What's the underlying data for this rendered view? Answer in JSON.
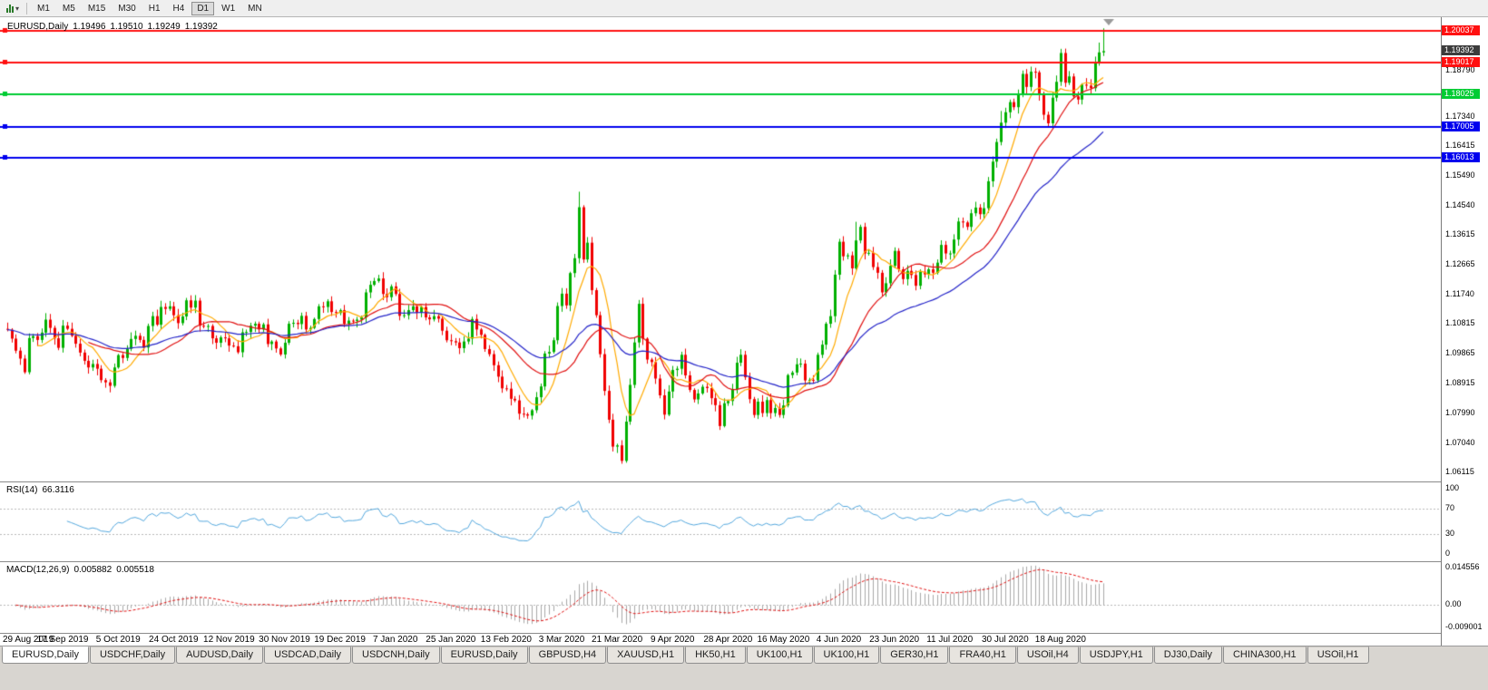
{
  "toolbar": {
    "timeframes": [
      "M1",
      "M5",
      "M15",
      "M30",
      "H1",
      "H4",
      "D1",
      "W1",
      "MN"
    ],
    "active_timeframe": "D1",
    "icons": {
      "charts_menu": "bar-chart-icon",
      "dropdown_caret": "▾"
    }
  },
  "chart": {
    "title": {
      "symbol_period": "EURUSD,Daily",
      "open": "1.19496",
      "high": "1.19510",
      "low": "1.19249",
      "close": "1.19392"
    },
    "dates": [
      "29 Aug 2019",
      "17 Sep 2019",
      "5 Oct 2019",
      "24 Oct 2019",
      "12 Nov 2019",
      "30 Nov 2019",
      "19 Dec 2019",
      "7 Jan 2020",
      "25 Jan 2020",
      "13 Feb 2020",
      "3 Mar 2020",
      "21 Mar 2020",
      "9 Apr 2020",
      "28 Apr 2020",
      "16 May 2020",
      "4 Jun 2020",
      "23 Jun 2020",
      "11 Jul 2020",
      "30 Jul 2020",
      "18 Aug 2020"
    ]
  },
  "chart_data": {
    "type": "candlestick",
    "symbol": "EURUSD",
    "timeframe": "Daily",
    "y_range": {
      "top": 1.2046,
      "bottom": 1.058
    },
    "y_ticks": [
      "1.18790",
      "1.17340",
      "1.16415",
      "1.15490",
      "1.14540",
      "1.13615",
      "1.12665",
      "1.11740",
      "1.10815",
      "1.09865",
      "1.08915",
      "1.07990",
      "1.07040",
      "1.06115"
    ],
    "current_price": {
      "value": 1.19392,
      "label": "1.19392",
      "bg": "#3c3c3c"
    },
    "hlines": [
      {
        "price": 1.20037,
        "label": "1.20037",
        "color": "#ff1010"
      },
      {
        "price": 1.19017,
        "label": "1.19017",
        "color": "#ff1010"
      },
      {
        "price": 1.18025,
        "label": "1.18025",
        "color": "#00cc33"
      },
      {
        "price": 1.17005,
        "label": "1.17005",
        "color": "#0000ee"
      },
      {
        "price": 1.16013,
        "label": "1.16013",
        "color": "#0000ee"
      }
    ],
    "first_open": 1.1062,
    "closes": [
      1.1059,
      1.1031,
      1.0993,
      1.0968,
      1.0925,
      1.1033,
      1.1039,
      1.1027,
      1.105,
      1.1091,
      1.1065,
      1.1032,
      1.1002,
      1.1072,
      1.1062,
      1.104,
      1.1015,
      1.0987,
      1.0961,
      1.094,
      1.0951,
      1.0936,
      1.09,
      1.0893,
      1.0882,
      1.094,
      1.0979,
      1.097,
      1.0999,
      1.103,
      1.104,
      1.1027,
      1.1003,
      1.1071,
      1.1102,
      1.1075,
      1.1131,
      1.1125,
      1.1133,
      1.1105,
      1.108,
      1.1101,
      1.1152,
      1.1129,
      1.1151,
      1.1072,
      1.1069,
      1.1071,
      1.1032,
      1.1018,
      1.1035,
      1.1032,
      1.1009,
      1.1007,
      1.0988,
      1.1051,
      1.1052,
      1.1072,
      1.1078,
      1.106,
      1.1076,
      1.1014,
      1.1022,
      1.1,
      1.0981,
      1.1018,
      1.1078,
      1.1081,
      1.1077,
      1.1103,
      1.106,
      1.1065,
      1.1093,
      1.1133,
      1.1131,
      1.1149,
      1.1115,
      1.1112,
      1.1121,
      1.1078,
      1.1088,
      1.1087,
      1.1091,
      1.1098,
      1.1177,
      1.1201,
      1.1213,
      1.1221,
      1.1172,
      1.1162,
      1.1196,
      1.1172,
      1.1103,
      1.1105,
      1.1121,
      1.1133,
      1.1113,
      1.1131,
      1.1098,
      1.1092,
      1.1102,
      1.1094,
      1.1056,
      1.1026,
      1.1023,
      1.1019,
      1.1001,
      1.1022,
      1.1031,
      1.1093,
      1.106,
      1.1043,
      1.0998,
      1.0982,
      1.0947,
      1.0911,
      1.0874,
      1.0873,
      1.0841,
      1.0836,
      1.0794,
      1.0792,
      1.0788,
      1.0805,
      1.0846,
      1.088,
      1.0984,
      1.0989,
      1.1026,
      1.1134,
      1.1173,
      1.1136,
      1.1238,
      1.1285,
      1.1446,
      1.1281,
      1.1334,
      1.1184,
      1.1105,
      1.0982,
      1.0866,
      1.0775,
      1.069,
      1.0694,
      1.0645,
      1.0769,
      1.0885,
      1.1019,
      1.1141,
      1.1031,
      1.0965,
      1.0957,
      1.0905,
      1.0852,
      1.0791,
      1.0864,
      1.0932,
      1.0936,
      1.098,
      1.0915,
      1.0869,
      1.0839,
      1.0858,
      1.0879,
      1.0875,
      1.0843,
      1.0821,
      1.0755,
      1.0827,
      1.0834,
      1.0872,
      1.0955,
      1.098,
      1.0909,
      1.084,
      1.079,
      1.0832,
      1.0796,
      1.0837,
      1.0796,
      1.0812,
      1.079,
      1.082,
      1.0916,
      1.0924,
      1.095,
      1.0952,
      1.0899,
      1.0901,
      1.0899,
      1.098,
      1.1012,
      1.1078,
      1.1102,
      1.1233,
      1.1337,
      1.1291,
      1.1294,
      1.1253,
      1.1341,
      1.1384,
      1.13,
      1.1302,
      1.1257,
      1.1239,
      1.1177,
      1.1206,
      1.1261,
      1.1308,
      1.125,
      1.1219,
      1.1245,
      1.1232,
      1.1198,
      1.1242,
      1.1234,
      1.125,
      1.1239,
      1.1271,
      1.1327,
      1.13,
      1.13,
      1.1344,
      1.1401,
      1.1398,
      1.1384,
      1.1427,
      1.1445,
      1.1424,
      1.1443,
      1.1528,
      1.159,
      1.1652,
      1.1713,
      1.1746,
      1.1778,
      1.1762,
      1.1803,
      1.1867,
      1.1826,
      1.1874,
      1.1872,
      1.1801,
      1.1738,
      1.1711,
      1.1792,
      1.1842,
      1.1933,
      1.1839,
      1.1859,
      1.1796,
      1.1786,
      1.1833,
      1.183,
      1.1822,
      1.1903,
      1.1935,
      1.1939
    ],
    "wick_overrides": [
      {
        "i": 122,
        "low": 1.0778
      },
      {
        "i": 134,
        "high": 1.1495
      },
      {
        "i": 143,
        "low": 1.067
      },
      {
        "i": 144,
        "low": 1.0636
      },
      {
        "i": 199,
        "high": 1.14
      },
      {
        "i": 233,
        "high": 1.175
      },
      {
        "i": 256,
        "high": 1.1966
      },
      {
        "i": 257,
        "high": 1.2011
      }
    ],
    "moving_averages": [
      {
        "period": 8,
        "type": "sma",
        "color": "#ffaa00"
      },
      {
        "period": 20,
        "type": "sma",
        "color": "#e01010"
      },
      {
        "period": 40,
        "type": "ema",
        "color": "#2424c8"
      }
    ],
    "indicators": {
      "rsi": {
        "label": "RSI(14)",
        "value": "66.3116",
        "levels": [
          100,
          70,
          30,
          0
        ],
        "line_color": "#53a7dd"
      },
      "macd": {
        "label": "MACD(12,26,9)",
        "value": "0.005882",
        "signal": "0.005518",
        "axis_labels": [
          "0.014556",
          "0.00",
          "-0.009001"
        ],
        "hist_color": "#a8a8a8",
        "signal_color": "#e01010"
      }
    }
  },
  "colors": {
    "up_candle": "#00b000",
    "down_candle": "#f00000",
    "axis_border": "#7a7a7a"
  },
  "tabs": {
    "active_index": 0,
    "items": [
      "EURUSD,Daily",
      "USDCHF,Daily",
      "AUDUSD,Daily",
      "USDCAD,Daily",
      "USDCNH,Daily",
      "EURUSD,Daily",
      "GBPUSD,H4",
      "XAUUSD,H1",
      "HK50,H1",
      "UK100,H1",
      "UK100,H1",
      "GER30,H1",
      "FRA40,H1",
      "USOil,H4",
      "USDJPY,H1",
      "DJ30,Daily",
      "CHINA300,H1",
      "USOil,H1"
    ]
  }
}
